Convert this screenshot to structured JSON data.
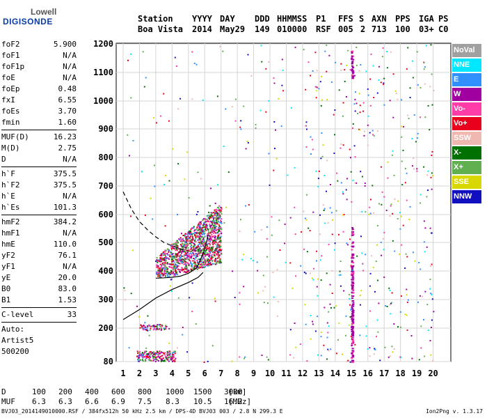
{
  "logo": {
    "line1": "Lowell",
    "line2": "DIGISONDE"
  },
  "header": {
    "labels": [
      "Station",
      "YYYY",
      "DAY",
      "DDD",
      "HHMMSS",
      "P1",
      "FFS",
      "S",
      "AXN",
      "PPS",
      "IGA",
      "PS"
    ],
    "values": [
      "Boa Vista",
      "2014",
      "May29",
      "149",
      "010000",
      "RSF",
      "005",
      "2",
      "713",
      "100",
      "03+",
      "C0"
    ]
  },
  "params_group1": [
    {
      "name": "foF2",
      "value": "5.900"
    },
    {
      "name": "foF1",
      "value": "N/A"
    },
    {
      "name": "foF1p",
      "value": "N/A"
    },
    {
      "name": "foE",
      "value": "N/A"
    },
    {
      "name": "foEp",
      "value": "0.48"
    },
    {
      "name": "fxI",
      "value": "6.55"
    },
    {
      "name": "foEs",
      "value": "3.70"
    },
    {
      "name": "fmin",
      "value": "1.60"
    }
  ],
  "params_group2": [
    {
      "name": "MUF(D)",
      "value": "16.23"
    },
    {
      "name": "M(D)",
      "value": "2.75"
    },
    {
      "name": "D",
      "value": "N/A"
    }
  ],
  "params_group3": [
    {
      "name": "h`F",
      "value": "375.5"
    },
    {
      "name": "h`F2",
      "value": "375.5"
    },
    {
      "name": "h`E",
      "value": "N/A"
    },
    {
      "name": "h`Es",
      "value": "101.3"
    }
  ],
  "params_group4": [
    {
      "name": "hmF2",
      "value": "384.2"
    },
    {
      "name": "hmF1",
      "value": "N/A"
    },
    {
      "name": "hmE",
      "value": "110.0"
    },
    {
      "name": "yF2",
      "value": "76.1"
    },
    {
      "name": "yF1",
      "value": "N/A"
    },
    {
      "name": "yE",
      "value": "20.0"
    },
    {
      "name": "B0",
      "value": "83.0"
    },
    {
      "name": "B1",
      "value": "1.53"
    }
  ],
  "params_group5": [
    {
      "name": "C-level",
      "value": "33"
    }
  ],
  "auto_lines": [
    "Auto:",
    "Artist5",
    "500200"
  ],
  "legend": [
    {
      "label": "NoVal",
      "color": "#a0a0a0"
    },
    {
      "label": "NNE",
      "color": "#00e8ff"
    },
    {
      "label": "E",
      "color": "#3090ff"
    },
    {
      "label": "W",
      "color": "#a000a0"
    },
    {
      "label": "Vo-",
      "color": "#ff3ca8"
    },
    {
      "label": "Vo+",
      "color": "#e8001c"
    },
    {
      "label": "SSW",
      "color": "#f0b8b0"
    },
    {
      "label": "X-",
      "color": "#007000"
    },
    {
      "label": "X+",
      "color": "#60b050"
    },
    {
      "label": "SSE",
      "color": "#d8d800"
    },
    {
      "label": "NNW",
      "color": "#1010c0"
    }
  ],
  "dmuf": {
    "d_label": "D",
    "d_values": [
      "100",
      "200",
      "400",
      "600",
      "800",
      "1000",
      "1500",
      "3000"
    ],
    "d_unit": "[km]",
    "muf_label": "MUF",
    "muf_values": [
      "6.3",
      "6.3",
      "6.6",
      "6.9",
      "7.5",
      "8.3",
      "10.5",
      "16.2"
    ],
    "muf_unit": "[MHz]"
  },
  "footer": {
    "left": "BVJ03_2014149010000.RSF / 384fx512h 50 kHz 2.5 km / DPS-4D BVJ03 003 / 2.8 N 299.3 E",
    "right": "Ion2Png v. 1.3.17"
  },
  "chart_data": {
    "type": "scatter",
    "x_ticks": [
      1,
      2,
      3,
      4,
      5,
      6,
      7,
      8,
      9,
      10,
      11,
      12,
      13,
      14,
      15,
      16,
      17,
      18,
      19,
      20
    ],
    "y_ticks": [
      80,
      200,
      300,
      400,
      500,
      600,
      700,
      800,
      900,
      1000,
      1100,
      1200
    ],
    "xlim": [
      1,
      20
    ],
    "ylim": [
      80,
      1200
    ],
    "grid": true,
    "legend_position": "right",
    "clusters": [
      {
        "x_range": [
          3.0,
          7.0
        ],
        "y_range": [
          380,
          640
        ],
        "density": 0.9
      },
      {
        "x_range": [
          2.0,
          3.8
        ],
        "y_range": [
          195,
          215
        ],
        "density": 0.6
      },
      {
        "x_range": [
          1.8,
          4.2
        ],
        "y_range": [
          82,
          120
        ],
        "density": 0.7
      },
      {
        "x_range": [
          14.95,
          15.05
        ],
        "y_range": [
          80,
          560
        ],
        "density": 1.0
      },
      {
        "x_range": [
          14.95,
          15.05
        ],
        "y_range": [
          1080,
          1180
        ],
        "density": 1.0
      }
    ],
    "trace_solid": [
      {
        "x": 1.0,
        "y": 230
      },
      {
        "x": 2.0,
        "y": 265
      },
      {
        "x": 3.0,
        "y": 305
      },
      {
        "x": 4.0,
        "y": 335
      },
      {
        "x": 5.0,
        "y": 360
      },
      {
        "x": 5.6,
        "y": 378
      },
      {
        "x": 5.9,
        "y": 395
      }
    ],
    "trace_dashed": [
      {
        "x": 1.0,
        "y": 680
      },
      {
        "x": 1.5,
        "y": 620
      },
      {
        "x": 2.0,
        "y": 575
      },
      {
        "x": 2.5,
        "y": 545
      },
      {
        "x": 3.0,
        "y": 520
      },
      {
        "x": 3.5,
        "y": 500
      },
      {
        "x": 4.0,
        "y": 488
      },
      {
        "x": 4.5,
        "y": 478
      },
      {
        "x": 5.0,
        "y": 470
      }
    ],
    "trace_profile": [
      {
        "x": 3.0,
        "y": 375
      },
      {
        "x": 3.5,
        "y": 376
      },
      {
        "x": 4.0,
        "y": 378
      },
      {
        "x": 4.5,
        "y": 382
      },
      {
        "x": 5.0,
        "y": 392
      },
      {
        "x": 5.5,
        "y": 410
      },
      {
        "x": 5.9,
        "y": 460
      },
      {
        "x": 6.2,
        "y": 520
      }
    ]
  }
}
